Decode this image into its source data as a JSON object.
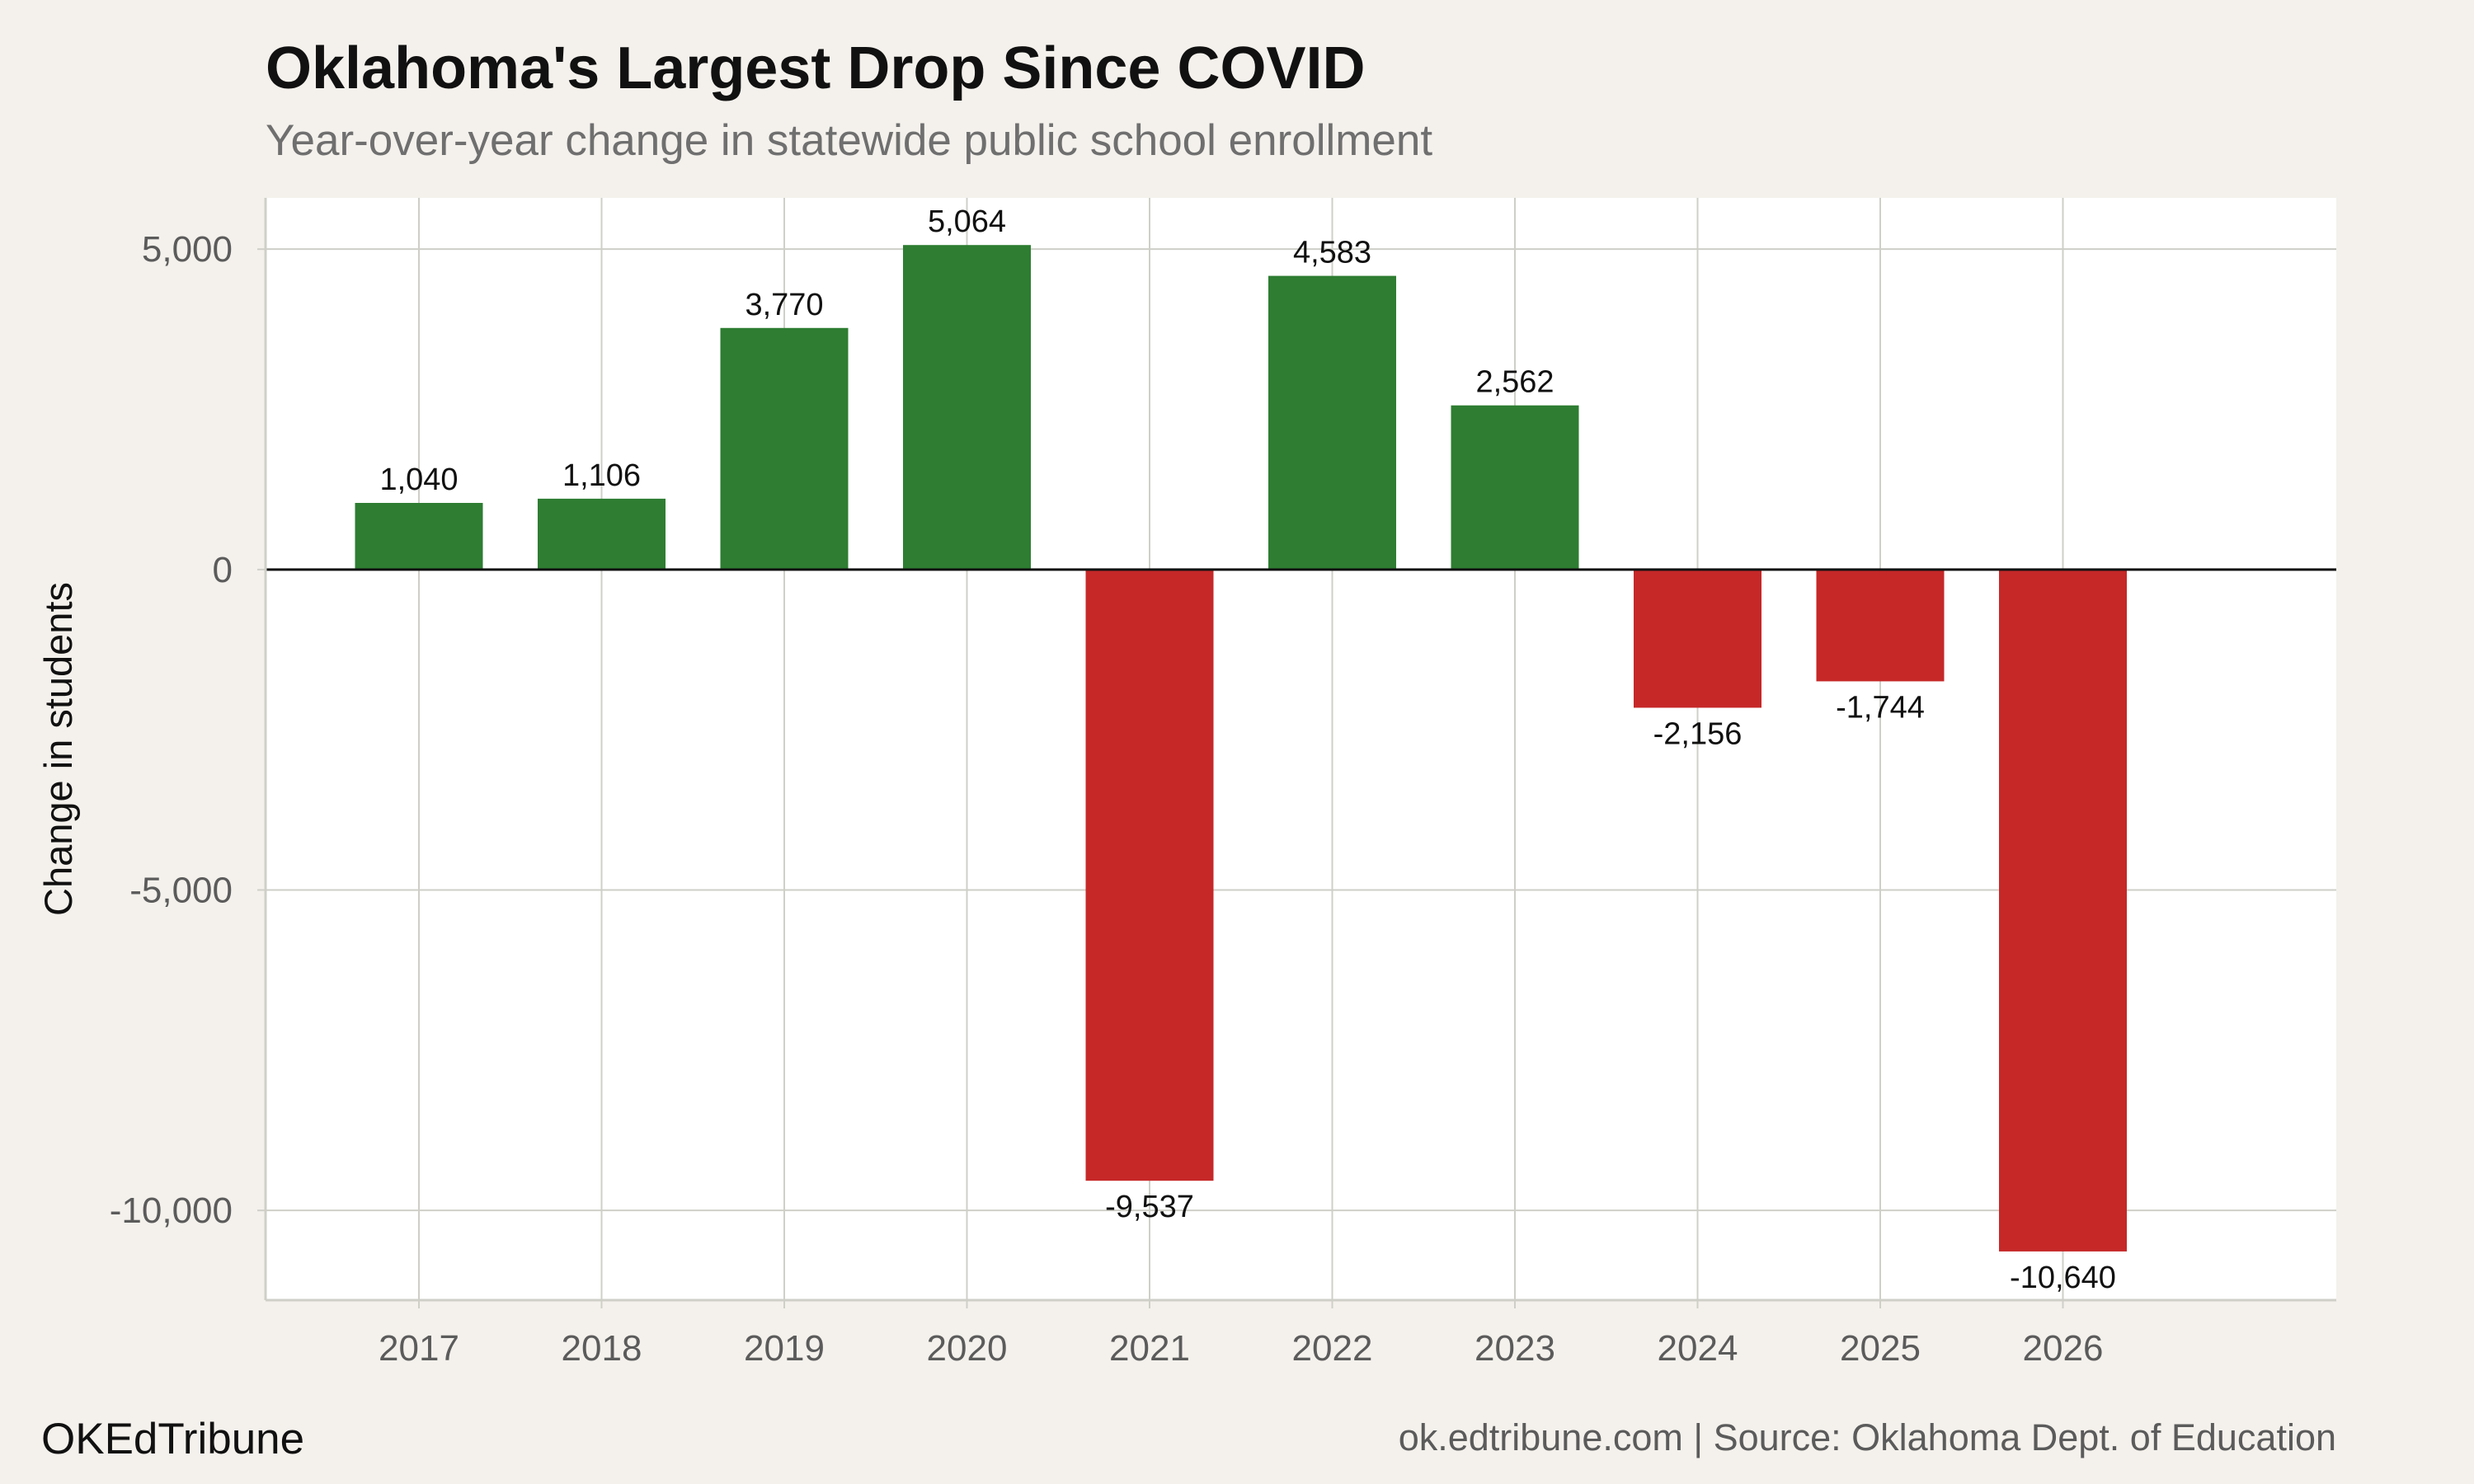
{
  "chart_data": {
    "type": "bar",
    "title": "Oklahoma's Largest Drop Since COVID",
    "subtitle": "Year-over-year change in statewide public school enrollment",
    "xlabel": "",
    "ylabel": "Change in students",
    "categories": [
      "2017",
      "2018",
      "2019",
      "2020",
      "2021",
      "2022",
      "2023",
      "2024",
      "2025",
      "2026"
    ],
    "values": [
      1040,
      1106,
      3770,
      5064,
      -9537,
      4583,
      2562,
      -2156,
      -1744,
      -10640
    ],
    "data_labels": [
      "1,040",
      "1,106",
      "3,770",
      "5,064",
      "-9,537",
      "4,583",
      "2,562",
      "-2,156",
      "-1,744",
      "-10,640"
    ],
    "ylim": [
      -11400,
      5800
    ],
    "yticks": [
      5000,
      0,
      -5000,
      -10000
    ],
    "ytick_labels": [
      "5,000",
      "0",
      "-5,000",
      "-10,000"
    ],
    "grid": true,
    "legend": "none",
    "colors": {
      "positive": "#2e7d32",
      "negative": "#c62828"
    }
  },
  "footer": {
    "brand": "OKEdTribune",
    "source": "ok.edtribune.com | Source: Oklahoma Dept. of Education"
  }
}
